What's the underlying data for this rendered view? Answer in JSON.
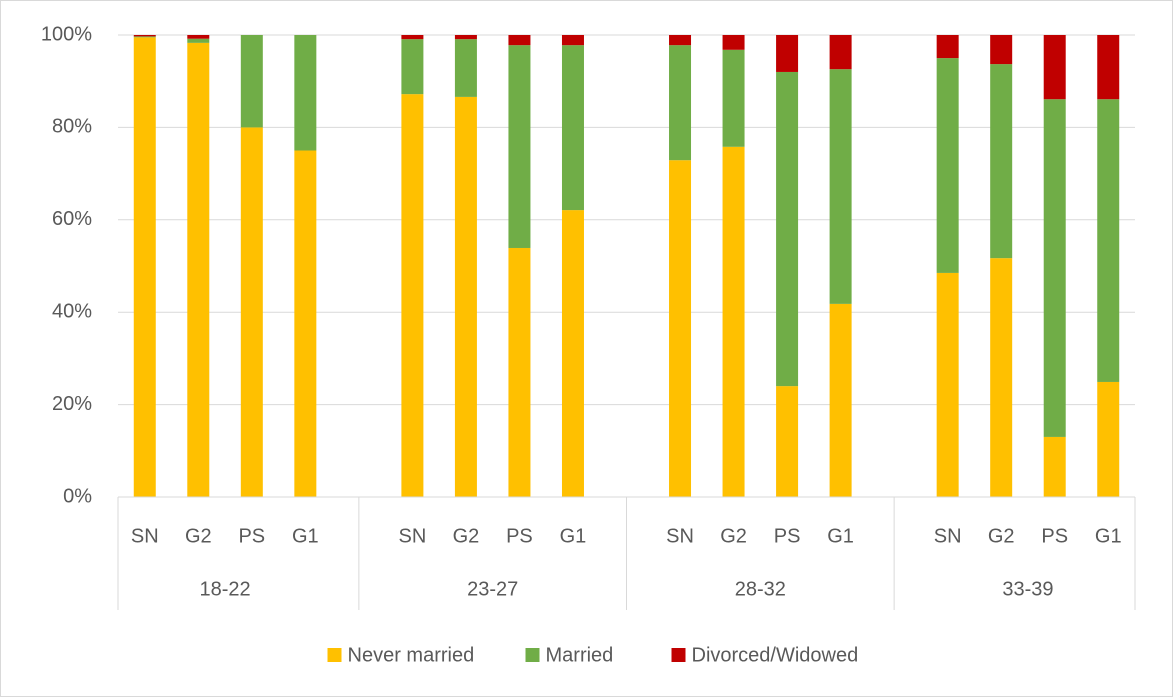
{
  "chart_data": {
    "type": "stacked-bar",
    "groups": [
      "18-22",
      "23-27",
      "28-32",
      "33-39"
    ],
    "categories": [
      "SN",
      "G2",
      "PS",
      "G1",
      "SN",
      "G2",
      "PS",
      "G1",
      "SN",
      "G2",
      "PS",
      "G1",
      "SN",
      "G2",
      "PS",
      "G1"
    ],
    "series": [
      {
        "name": "Never married",
        "color": "#ffc000",
        "values": [
          99.5,
          98.3,
          80,
          75,
          87.2,
          86.6,
          53.9,
          62.1,
          72.9,
          75.8,
          24,
          41.8,
          48.5,
          51.7,
          13,
          24.9
        ]
      },
      {
        "name": "Married",
        "color": "#70ad47",
        "values": [
          0.2,
          0.9,
          20,
          25,
          11.9,
          12.5,
          43.9,
          35.7,
          24.9,
          21,
          68,
          50.8,
          46.5,
          42,
          73.1,
          61.2
        ]
      },
      {
        "name": "Divorced/Widowed",
        "color": "#c00000",
        "values": [
          0.3,
          0.8,
          0,
          0,
          0.9,
          0.9,
          2.2,
          2.2,
          2.2,
          3.2,
          8,
          7.4,
          5,
          6.3,
          13.9,
          13.9
        ]
      }
    ],
    "ylim": [
      0,
      100
    ],
    "yticks": [
      {
        "value": 0,
        "label": "0%"
      },
      {
        "value": 20,
        "label": "20%"
      },
      {
        "value": 40,
        "label": "40%"
      },
      {
        "value": 60,
        "label": "60%"
      },
      {
        "value": 80,
        "label": "80%"
      },
      {
        "value": 100,
        "label": "100%"
      }
    ],
    "grid": true,
    "legend": "bottom"
  }
}
